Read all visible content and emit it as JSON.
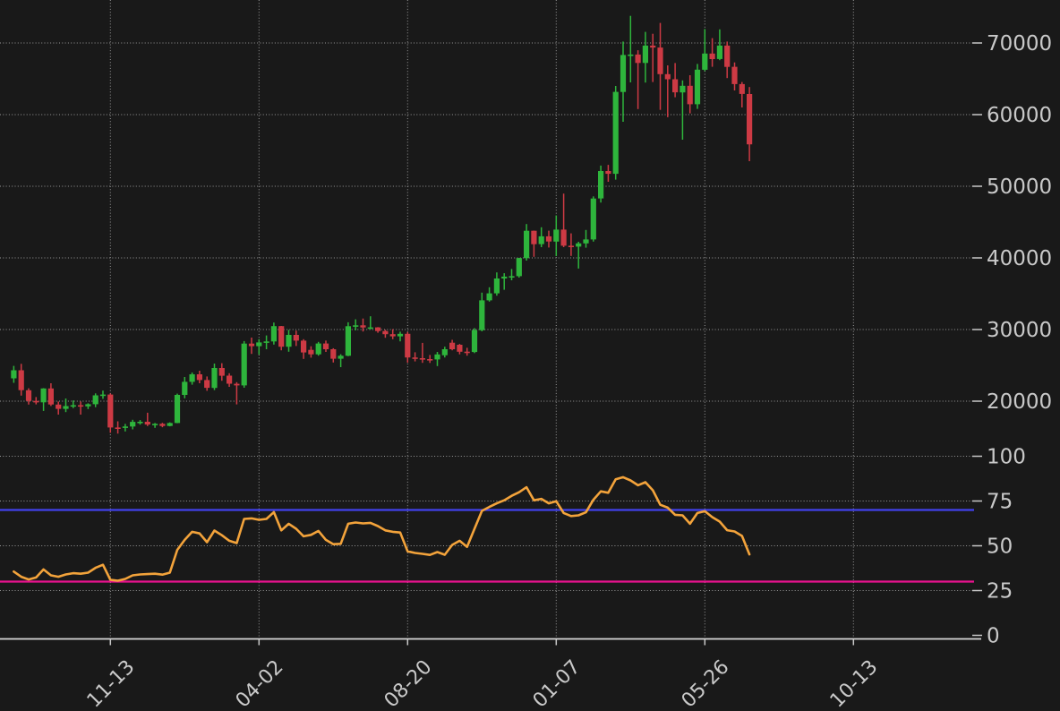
{
  "figure": {
    "kind": "financial-chart",
    "description": "Weekly candlestick price chart with RSI indicator pane",
    "background_color": "#191919"
  },
  "chart_data": {
    "type": "candlestick",
    "grid": true,
    "legend_position": "none",
    "x_axis": {
      "tick_labels": [
        "11-13",
        "04-02",
        "08-20",
        "01-07",
        "05-26",
        "10-13"
      ],
      "tick_week_indices": [
        13,
        33,
        53,
        73,
        93,
        113
      ],
      "label_rotation_deg": 45
    },
    "price_pane": {
      "yticks": [
        70000,
        60000,
        50000,
        40000,
        30000,
        20000
      ],
      "ylim": [
        14300,
        76000
      ],
      "up_color": "#2eb53c",
      "down_color": "#cd3a44",
      "columns": [
        "week_end",
        "open",
        "high",
        "low",
        "close"
      ],
      "candles": [
        [
          "08-14",
          23180,
          24920,
          22560,
          24310
        ],
        [
          "08-21",
          24310,
          25210,
          20780,
          21530
        ],
        [
          "08-28",
          21530,
          21800,
          19520,
          20040
        ],
        [
          "09-04",
          20040,
          20570,
          19550,
          19830
        ],
        [
          "09-11",
          19830,
          21810,
          18640,
          21770
        ],
        [
          "09-18",
          21770,
          22500,
          19320,
          19530
        ],
        [
          "09-25",
          19530,
          19950,
          18125,
          18925
        ],
        [
          "10-02",
          18925,
          20380,
          18470,
          19310
        ],
        [
          "10-09",
          19310,
          20100,
          19030,
          19440
        ],
        [
          "10-16",
          19440,
          19950,
          18130,
          19270
        ],
        [
          "10-23",
          19270,
          19700,
          18900,
          19570
        ],
        [
          "10-30",
          19570,
          21085,
          19160,
          20810
        ],
        [
          "11-06",
          20810,
          21480,
          20330,
          20920
        ],
        [
          "11-13",
          20920,
          21070,
          15590,
          16320
        ],
        [
          "11-20",
          16320,
          17190,
          15480,
          16270
        ],
        [
          "11-27",
          16270,
          16820,
          15780,
          16460
        ],
        [
          "12-04",
          16460,
          17400,
          16060,
          17110
        ],
        [
          "12-11",
          17110,
          17360,
          16730,
          17130
        ],
        [
          "12-18",
          17130,
          18385,
          16530,
          16740
        ],
        [
          "12-25",
          16740,
          16955,
          16280,
          16840
        ],
        [
          "01-01",
          16840,
          16980,
          16360,
          16540
        ],
        [
          "01-08",
          16540,
          17040,
          16490,
          16950
        ],
        [
          "01-15",
          16950,
          21050,
          16920,
          20880
        ],
        [
          "01-22",
          20880,
          23380,
          20400,
          22700
        ],
        [
          "01-29",
          22700,
          24000,
          22300,
          23750
        ],
        [
          "02-05",
          23750,
          24250,
          22500,
          22950
        ],
        [
          "02-12",
          22950,
          23450,
          21450,
          21860
        ],
        [
          "02-19",
          21860,
          25250,
          21550,
          24630
        ],
        [
          "02-26",
          24630,
          25300,
          22850,
          23560
        ],
        [
          "03-05",
          23560,
          23900,
          22000,
          22430
        ],
        [
          "03-12",
          22430,
          22650,
          19550,
          22200
        ],
        [
          "03-19",
          22200,
          28390,
          21880,
          28040
        ],
        [
          "03-26",
          28040,
          28870,
          26600,
          27680
        ],
        [
          "04-02",
          27680,
          28650,
          26510,
          28200
        ],
        [
          "04-09",
          28200,
          29180,
          27250,
          28340
        ],
        [
          "04-16",
          28340,
          30980,
          27900,
          30480
        ],
        [
          "04-23",
          30480,
          30500,
          27100,
          27600
        ],
        [
          "04-30",
          27600,
          29950,
          26900,
          29250
        ],
        [
          "05-07",
          29250,
          29850,
          27700,
          28450
        ],
        [
          "05-14",
          28450,
          28650,
          25900,
          26800
        ],
        [
          "05-21",
          27160,
          27660,
          26080,
          26540
        ],
        [
          "05-28",
          26540,
          28280,
          26350,
          28050
        ],
        [
          "06-04",
          28050,
          28460,
          26880,
          27250
        ],
        [
          "06-11",
          27250,
          27390,
          25400,
          25930
        ],
        [
          "06-18",
          25930,
          26550,
          24750,
          26340
        ],
        [
          "06-25",
          26340,
          31010,
          26270,
          30460
        ],
        [
          "07-02",
          30460,
          31420,
          29900,
          30590
        ],
        [
          "07-09",
          30590,
          31540,
          29720,
          30290
        ],
        [
          "07-16",
          30290,
          31850,
          30050,
          30300
        ],
        [
          "07-23",
          30300,
          30340,
          29550,
          29790
        ],
        [
          "07-30",
          29790,
          29970,
          28850,
          29350
        ],
        [
          "08-06",
          29350,
          30050,
          28650,
          29050
        ],
        [
          "08-13",
          29050,
          29700,
          28350,
          29400
        ],
        [
          "08-20",
          29400,
          29650,
          25380,
          26100
        ],
        [
          "08-27",
          26100,
          26820,
          25550,
          26000
        ],
        [
          "09-03",
          26000,
          28140,
          25350,
          25870
        ],
        [
          "09-10",
          25870,
          26450,
          25340,
          25830
        ],
        [
          "09-17",
          25830,
          26880,
          24900,
          26530
        ],
        [
          "09-24",
          26410,
          27600,
          26100,
          27250
        ],
        [
          "10-01",
          28160,
          28560,
          27100,
          27250
        ],
        [
          "10-08",
          27880,
          27990,
          26540,
          26910
        ],
        [
          "10-15",
          26910,
          27450,
          26350,
          26860
        ],
        [
          "10-22",
          26860,
          30200,
          26710,
          29920
        ],
        [
          "10-29",
          29920,
          35150,
          29750,
          34080
        ],
        [
          "11-05",
          34080,
          35900,
          33900,
          35050
        ],
        [
          "11-12",
          35050,
          37970,
          34730,
          37130
        ],
        [
          "11-19",
          37130,
          37860,
          35550,
          37390
        ],
        [
          "11-26",
          37390,
          38450,
          36870,
          37450
        ],
        [
          "12-03",
          37450,
          40000,
          37250,
          39970
        ],
        [
          "12-10",
          39970,
          44730,
          39620,
          43790
        ],
        [
          "12-17",
          43790,
          43810,
          40150,
          41920
        ],
        [
          "12-24",
          41920,
          44280,
          41500,
          43010
        ],
        [
          "12-31",
          43010,
          43800,
          41450,
          42280
        ],
        [
          "01-07",
          42280,
          45920,
          40250,
          43950
        ],
        [
          "01-14",
          43950,
          48970,
          41500,
          41700
        ],
        [
          "01-21",
          41700,
          43430,
          40280,
          41580
        ],
        [
          "01-28",
          41580,
          42250,
          38510,
          42030
        ],
        [
          "02-04",
          42030,
          43900,
          41420,
          42580
        ],
        [
          "02-11",
          42580,
          48590,
          42270,
          48290
        ],
        [
          "02-18",
          48290,
          52890,
          47720,
          52120
        ],
        [
          "02-25",
          52120,
          52990,
          50630,
          51730
        ],
        [
          "03-03",
          51730,
          64000,
          50930,
          63170
        ],
        [
          "03-10",
          63170,
          70200,
          59000,
          68330
        ],
        [
          "03-17",
          68330,
          73790,
          64500,
          68390
        ],
        [
          "03-24",
          68390,
          68990,
          60770,
          67210
        ],
        [
          "03-31",
          67210,
          71550,
          64470,
          69640
        ],
        [
          "04-07",
          69640,
          71290,
          64550,
          69360
        ],
        [
          "04-14",
          69360,
          72800,
          60660,
          65650
        ],
        [
          "04-21",
          65650,
          66880,
          59640,
          64940
        ],
        [
          "04-28",
          64940,
          67200,
          62420,
          63110
        ],
        [
          "05-05",
          63110,
          64780,
          56500,
          64030
        ],
        [
          "05-12",
          64030,
          65500,
          60170,
          61450
        ],
        [
          "05-19",
          61450,
          67080,
          60800,
          66270
        ],
        [
          "05-26",
          66270,
          71950,
          66060,
          68530
        ],
        [
          "06-02",
          68530,
          70670,
          66670,
          67760
        ],
        [
          "06-09",
          67760,
          71900,
          67600,
          69640
        ],
        [
          "06-16",
          69640,
          70200,
          65100,
          66670
        ],
        [
          "06-23",
          66670,
          67290,
          63380,
          64260
        ],
        [
          "06-30",
          64260,
          64550,
          61000,
          62880
        ],
        [
          "07-07",
          62880,
          63850,
          53500,
          55850
        ]
      ]
    },
    "rsi_pane": {
      "series_name": "RSI",
      "yticks": [
        100,
        75,
        50,
        25,
        0
      ],
      "ylim": [
        0,
        102
      ],
      "line_color": "#f3a33b",
      "overbought_level": 70,
      "overbought_color": "#4242ee",
      "oversold_level": 30,
      "oversold_color": "#e9138f",
      "values": [
        35.6,
        32.7,
        31.2,
        32.3,
        36.8,
        33.5,
        32.7,
        34.0,
        34.7,
        34.4,
        35.0,
        37.7,
        39.4,
        31.0,
        30.5,
        31.5,
        33.5,
        34.0,
        34.2,
        34.4,
        33.9,
        35.0,
        47.7,
        53.3,
        57.8,
        56.9,
        52.0,
        58.5,
        55.9,
        52.8,
        51.5,
        65.0,
        65.3,
        64.5,
        65.0,
        68.8,
        58.6,
        62.3,
        59.5,
        55.3,
        56.1,
        58.3,
        53.3,
        50.9,
        51.1,
        62.3,
        63.0,
        62.5,
        62.8,
        61.0,
        58.6,
        57.8,
        57.4,
        46.9,
        46.0,
        45.5,
        44.9,
        46.5,
        45.0,
        50.5,
        52.8,
        49.4,
        59.5,
        69.5,
        71.7,
        73.7,
        75.4,
        77.9,
        79.9,
        82.7,
        75.4,
        76.2,
        73.7,
        74.9,
        68.3,
        66.6,
        67.0,
        68.7,
        75.7,
        80.4,
        79.6,
        87.1,
        88.3,
        86.5,
        83.8,
        85.5,
        81.0,
        72.9,
        71.3,
        67.3,
        67.0,
        62.3,
        68.3,
        69.3,
        66.0,
        63.5,
        58.7,
        58.0,
        55.5,
        45.2
      ]
    },
    "style": {
      "grid_color": "#b9b9b9",
      "tick_label_color": "#c9c9c9",
      "axis_line_color": "#d9d9d9",
      "background": "#191919"
    }
  }
}
